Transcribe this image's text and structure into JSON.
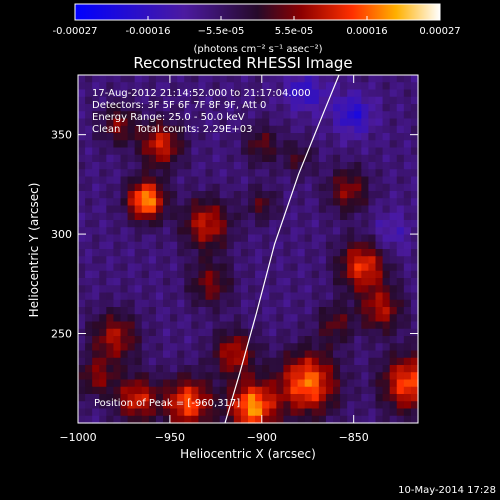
{
  "colorbar": {
    "ticks": [
      "-0.00027",
      "-0.00016",
      "−5.5e-05",
      "5.5e-05",
      "0.00016",
      "0.00027"
    ],
    "units": "(photons cm⁻² s⁻¹ asec⁻²)"
  },
  "image": {
    "title": "Reconstructed RHESSI Image",
    "info_lines": [
      "17-Aug-2012 21:14:52.000 to 21:17:04.000",
      "Detectors: 3F 5F 6F 7F 8F 9F, Att 0",
      "Energy Range: 25.0 - 50.0 keV",
      "Clean     Total counts: 2.29E+03"
    ],
    "peak_text": "Position of Peak = [-960,317]",
    "footer_timestamp": "10-May-2014 17:28"
  },
  "chart_data": {
    "type": "heatmap",
    "title": "Reconstructed RHESSI Image",
    "xlabel": "Heliocentric X (arcsec)",
    "ylabel": "Heliocentric Y (arcsec)",
    "xlim": [
      -1000,
      -815
    ],
    "ylim": [
      205,
      380
    ],
    "xticks": [
      -1000,
      -950,
      -900,
      -850
    ],
    "yticks": [
      250,
      300,
      350
    ],
    "xtick_labels": [
      "−1000",
      "−950",
      "−900",
      "−850"
    ],
    "ytick_labels": [
      "250",
      "300",
      "350"
    ],
    "colorbar_range": [
      -0.00027,
      0.00027
    ],
    "peak_position": [
      -960,
      317
    ],
    "hotspots": [
      {
        "x": -963,
        "y": 317,
        "amp": 0.00027,
        "r": 7
      },
      {
        "x": -955,
        "y": 345,
        "amp": 0.00018,
        "r": 8
      },
      {
        "x": -978,
        "y": 355,
        "amp": 0.00012,
        "r": 7
      },
      {
        "x": -980,
        "y": 248,
        "amp": 0.00015,
        "r": 9
      },
      {
        "x": -930,
        "y": 305,
        "amp": 0.00017,
        "r": 9
      },
      {
        "x": -928,
        "y": 275,
        "amp": 0.00012,
        "r": 8
      },
      {
        "x": -900,
        "y": 345,
        "amp": 0.0001,
        "r": 7
      },
      {
        "x": -900,
        "y": 315,
        "amp": 9e-05,
        "r": 6
      },
      {
        "x": -880,
        "y": 338,
        "amp": 8e-05,
        "r": 6
      },
      {
        "x": -853,
        "y": 322,
        "amp": 0.00013,
        "r": 8
      },
      {
        "x": -845,
        "y": 284,
        "amp": 0.0002,
        "r": 9
      },
      {
        "x": -835,
        "y": 262,
        "amp": 0.00015,
        "r": 8
      },
      {
        "x": -820,
        "y": 225,
        "amp": 0.00022,
        "r": 10
      },
      {
        "x": -875,
        "y": 225,
        "amp": 0.00024,
        "r": 11
      },
      {
        "x": -905,
        "y": 213,
        "amp": 0.00026,
        "r": 9
      },
      {
        "x": -940,
        "y": 215,
        "amp": 0.00022,
        "r": 9
      },
      {
        "x": -968,
        "y": 217,
        "amp": 0.00018,
        "r": 8
      },
      {
        "x": -990,
        "y": 228,
        "amp": 0.00012,
        "r": 7
      },
      {
        "x": -860,
        "y": 255,
        "amp": 0.0001,
        "r": 7
      },
      {
        "x": -915,
        "y": 240,
        "amp": 0.00016,
        "r": 8
      }
    ],
    "coldspots": [
      {
        "x": -850,
        "y": 360,
        "amp": -0.00012,
        "r": 7
      },
      {
        "x": -880,
        "y": 372,
        "amp": -8e-05,
        "r": 6
      },
      {
        "x": -830,
        "y": 300,
        "amp": -6e-05,
        "r": 8
      },
      {
        "x": -870,
        "y": 370,
        "amp": -5e-05,
        "r": 7
      }
    ],
    "limb_curve": [
      [
        -920,
        205
      ],
      [
        -912,
        230
      ],
      [
        -903,
        260
      ],
      [
        -893,
        295
      ],
      [
        -880,
        330
      ],
      [
        -866,
        362
      ],
      [
        -858,
        380
      ]
    ]
  }
}
